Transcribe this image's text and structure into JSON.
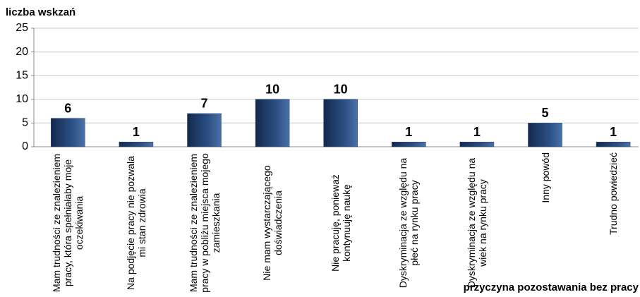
{
  "chart_data": {
    "type": "bar",
    "y_label": "liczba wskzań",
    "x_label": "przyczyna pozostawania bez pracy",
    "categories": [
      "Mam trudności ze znalezieniem pracy, która spełniałaby moje oczekiwania",
      "Na podjęcie pracy nie pozwala mi stan zdrowia",
      "Mam trudności ze znalezieniem pracy w pobliżu miejsca mojego zamieszkania",
      "Nie mam wystarczającego doświadczenia",
      "Nie pracuję, ponieważ kontynuuję naukę",
      "Dyskryminacja ze względu na płeć na rynku pracy",
      "Dyskryminacja ze względu na wiek na rynku pracy",
      "Inny powód",
      "Trudno powiedzieć"
    ],
    "values": [
      6,
      1,
      7,
      10,
      10,
      1,
      1,
      5,
      1
    ],
    "color": "#1f3f6e",
    "ylim": [
      0,
      25
    ],
    "yticks": [
      0,
      5,
      10,
      15,
      20,
      25
    ],
    "grid": true
  }
}
